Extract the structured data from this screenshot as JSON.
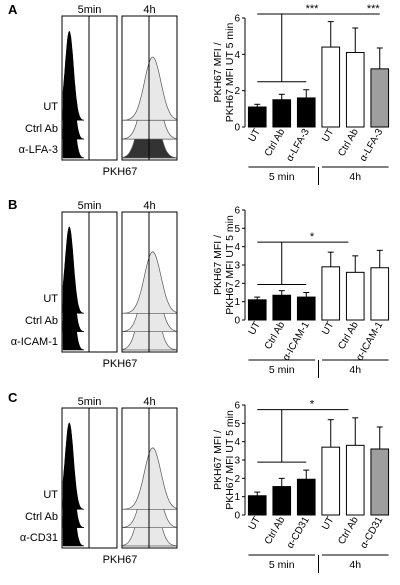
{
  "panels": [
    {
      "letter": "A",
      "hist_time_labels": [
        "5min",
        "4h"
      ],
      "hist_row_labels": [
        "UT",
        "Ctrl Ab",
        "α-LFA-3"
      ],
      "hist_xlabel": "PKH67",
      "chart_data": {
        "type": "bar",
        "ylabel": "PKH67 MFI /\nPKH67 MFI UT 5 min",
        "ylim": [
          0,
          6
        ],
        "yticks": [
          0,
          2,
          4,
          6
        ],
        "categories": [
          "UT",
          "Ctrl Ab",
          "α-LFA-3",
          "UT",
          "Ctrl Ab",
          "α-LFA-3"
        ],
        "values": [
          1.1,
          1.5,
          1.6,
          4.4,
          4.1,
          3.2
        ],
        "errors": [
          0.15,
          0.3,
          0.45,
          1.4,
          1.35,
          1.15
        ],
        "bar_colors": [
          "#000000",
          "#000000",
          "#000000",
          "#ffffff",
          "#ffffff",
          "#9e9e9e"
        ],
        "groups": [
          {
            "label": "5 min",
            "from": 0,
            "to": 2
          },
          {
            "label": "4h",
            "from": 3,
            "to": 5
          }
        ],
        "significance": [
          {
            "label": "***",
            "from": 0,
            "to": 3
          },
          {
            "label": "***",
            "from": 3,
            "to": 5
          }
        ]
      }
    },
    {
      "letter": "B",
      "hist_time_labels": [
        "5min",
        "4h"
      ],
      "hist_row_labels": [
        "UT",
        "Ctrl Ab",
        "α-ICAM-1"
      ],
      "hist_xlabel": "PKH67",
      "chart_data": {
        "type": "bar",
        "ylabel": "PKH67 MFI /\nPKH67 MFI UT 5 min",
        "ylim": [
          0,
          6
        ],
        "yticks": [
          0,
          1,
          2,
          3,
          4,
          5,
          6
        ],
        "categories": [
          "UT",
          "Ctrl Ab",
          "α-ICAM-1",
          "UT",
          "Ctrl Ab",
          "α-ICAM-1"
        ],
        "values": [
          1.1,
          1.35,
          1.25,
          2.9,
          2.6,
          2.85
        ],
        "errors": [
          0.15,
          0.25,
          0.25,
          0.8,
          0.9,
          0.95
        ],
        "bar_colors": [
          "#000000",
          "#000000",
          "#000000",
          "#ffffff",
          "#ffffff",
          "#ffffff"
        ],
        "groups": [
          {
            "label": "5 min",
            "from": 0,
            "to": 2
          },
          {
            "label": "4h",
            "from": 3,
            "to": 5
          }
        ],
        "significance": [
          {
            "label": "*",
            "from": 0,
            "to": 3
          }
        ]
      }
    },
    {
      "letter": "C",
      "hist_time_labels": [
        "5min",
        "4h"
      ],
      "hist_row_labels": [
        "UT",
        "Ctrl Ab",
        "α-CD31"
      ],
      "hist_xlabel": "PKH67",
      "chart_data": {
        "type": "bar",
        "ylabel": "PKH67 MFI /\nPKH67 MFI UT 5 min",
        "ylim": [
          0,
          6
        ],
        "yticks": [
          0,
          1,
          2,
          3,
          4,
          5,
          6
        ],
        "categories": [
          "UT",
          "Ctrl Ab",
          "α-CD31",
          "UT",
          "Ctrl Ab",
          "α-CD31"
        ],
        "values": [
          1.05,
          1.55,
          1.95,
          3.7,
          3.8,
          3.6
        ],
        "errors": [
          0.2,
          0.45,
          0.5,
          1.5,
          1.5,
          1.2
        ],
        "bar_colors": [
          "#000000",
          "#000000",
          "#000000",
          "#ffffff",
          "#ffffff",
          "#9e9e9e"
        ],
        "groups": [
          {
            "label": "5 min",
            "from": 0,
            "to": 2
          },
          {
            "label": "4h",
            "from": 3,
            "to": 5
          }
        ],
        "significance": [
          {
            "label": "*",
            "from": 0,
            "to": 3
          }
        ]
      }
    }
  ]
}
